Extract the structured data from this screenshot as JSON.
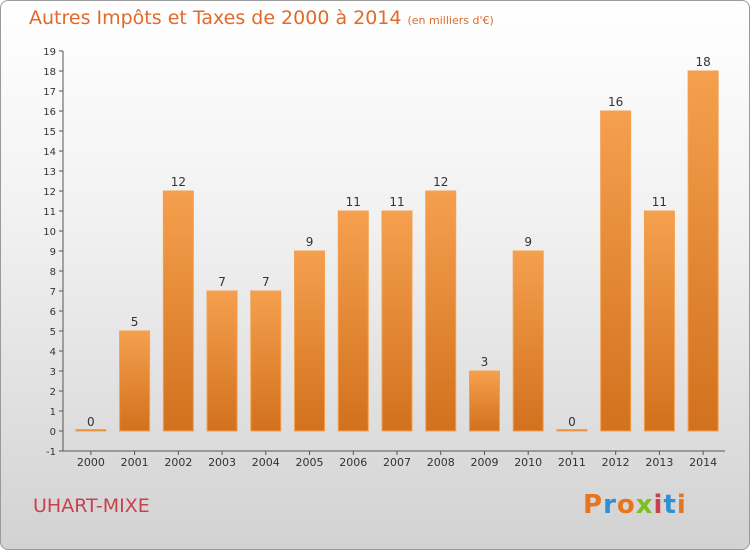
{
  "header": {
    "title": "Autres Impôts et Taxes de 2000 à 2014",
    "unit": "(en milliers d'€)"
  },
  "footer": {
    "commune": "UHART-MIXE",
    "brand": "Proxiti",
    "brand_colors": [
      "#e8741e",
      "#2f8fd0",
      "#e8741e",
      "#7cbf1e",
      "#c8424e",
      "#2f8fd0",
      "#e8741e"
    ]
  },
  "chart_data": {
    "type": "bar",
    "categories": [
      "2000",
      "2001",
      "2002",
      "2003",
      "2004",
      "2005",
      "2006",
      "2007",
      "2008",
      "2009",
      "2010",
      "2011",
      "2012",
      "2013",
      "2014"
    ],
    "values": [
      0,
      5,
      12,
      7,
      7,
      9,
      11,
      11,
      12,
      3,
      9,
      0,
      16,
      11,
      18
    ],
    "data_labels": [
      "0",
      "5",
      "12",
      "7",
      "7",
      "9",
      "11",
      "11",
      "12",
      "3",
      "9",
      "0",
      "16",
      "11",
      "18"
    ],
    "title": "Autres Impôts et Taxes de 2000 à 2014",
    "xlabel": "",
    "ylabel": "",
    "ylim": [
      -1,
      19
    ],
    "yticks": [
      -1,
      0,
      1,
      2,
      3,
      4,
      5,
      6,
      7,
      8,
      9,
      10,
      11,
      12,
      13,
      14,
      15,
      16,
      17,
      18,
      19
    ],
    "grid": false,
    "legend": "none",
    "bar_color": "#f5a04e",
    "bar_color_dark": "#d2711e"
  }
}
